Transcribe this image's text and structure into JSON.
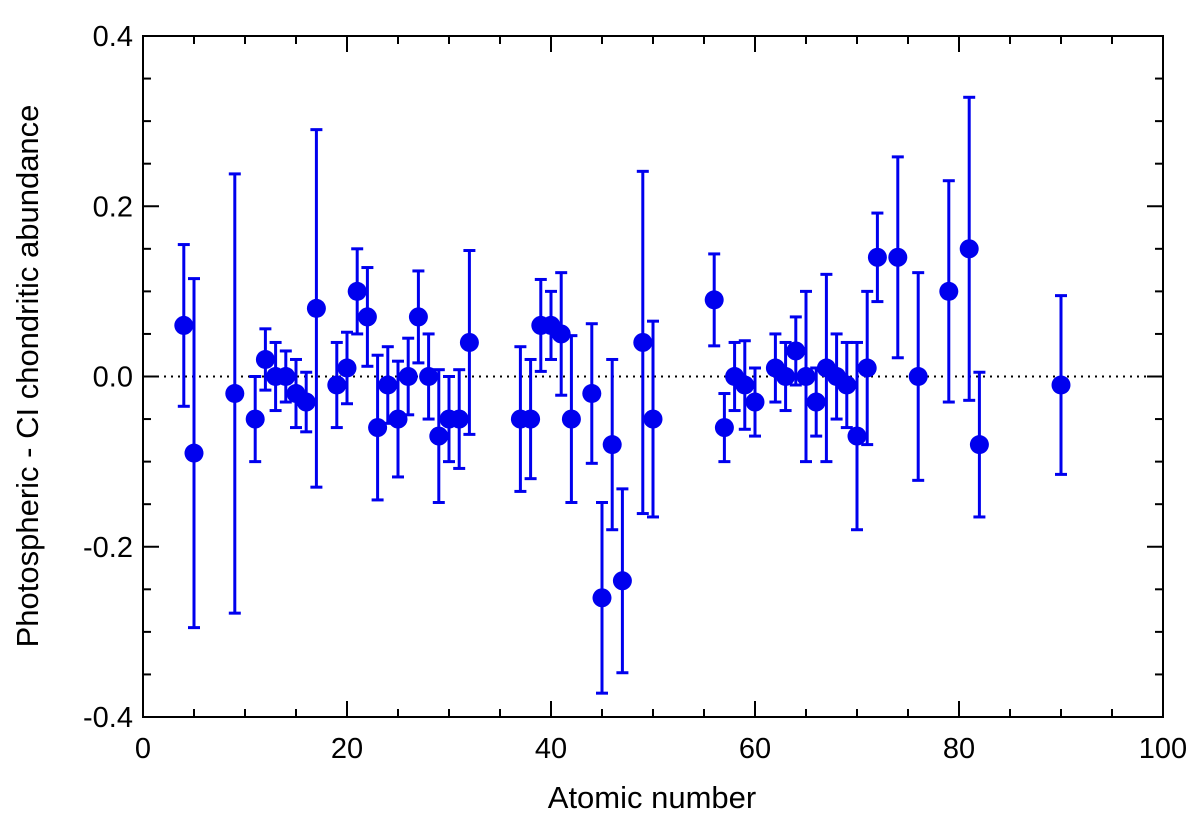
{
  "chart_data": {
    "type": "scatter",
    "title": "",
    "xlabel": "Atomic number",
    "ylabel": "Photospheric - CI chondritic abundance",
    "xlim": [
      0,
      100
    ],
    "ylim": [
      -0.4,
      0.4
    ],
    "xticks": [
      0,
      20,
      40,
      60,
      80,
      100
    ],
    "xtick_labels": [
      "0",
      "20",
      "40",
      "60",
      "80",
      "100"
    ],
    "yticks": [
      -0.4,
      -0.2,
      0.0,
      0.2,
      0.4
    ],
    "ytick_labels": [
      "-0.4",
      "-0.2",
      "0.0",
      "0.2",
      "0.4"
    ],
    "reference_line": {
      "y": 0.0,
      "style": "dotted"
    },
    "grid": false,
    "legend": "none",
    "marker_color": "#0000ee",
    "points": [
      {
        "x": 4,
        "y": 0.06,
        "err": 0.095
      },
      {
        "x": 5,
        "y": -0.09,
        "err": 0.205
      },
      {
        "x": 9,
        "y": -0.02,
        "err": 0.258
      },
      {
        "x": 11,
        "y": -0.05,
        "err": 0.05
      },
      {
        "x": 12,
        "y": 0.02,
        "err": 0.036
      },
      {
        "x": 13,
        "y": 0.0,
        "err": 0.04
      },
      {
        "x": 14,
        "y": 0.0,
        "err": 0.03
      },
      {
        "x": 15,
        "y": -0.02,
        "err": 0.04
      },
      {
        "x": 16,
        "y": -0.03,
        "err": 0.035
      },
      {
        "x": 17,
        "y": 0.08,
        "err": 0.21
      },
      {
        "x": 19,
        "y": -0.01,
        "err": 0.05
      },
      {
        "x": 20,
        "y": 0.01,
        "err": 0.042
      },
      {
        "x": 21,
        "y": 0.1,
        "err": 0.05
      },
      {
        "x": 22,
        "y": 0.07,
        "err": 0.058
      },
      {
        "x": 23,
        "y": -0.06,
        "err": 0.085
      },
      {
        "x": 24,
        "y": -0.01,
        "err": 0.045
      },
      {
        "x": 25,
        "y": -0.05,
        "err": 0.068
      },
      {
        "x": 26,
        "y": 0.0,
        "err": 0.045
      },
      {
        "x": 27,
        "y": 0.07,
        "err": 0.054
      },
      {
        "x": 28,
        "y": 0.0,
        "err": 0.05
      },
      {
        "x": 29,
        "y": -0.07,
        "err": 0.078
      },
      {
        "x": 30,
        "y": -0.05,
        "err": 0.05
      },
      {
        "x": 31,
        "y": -0.05,
        "err": 0.058
      },
      {
        "x": 32,
        "y": 0.04,
        "err": 0.108
      },
      {
        "x": 37,
        "y": -0.05,
        "err": 0.085
      },
      {
        "x": 38,
        "y": -0.05,
        "err": 0.07
      },
      {
        "x": 39,
        "y": 0.06,
        "err": 0.054
      },
      {
        "x": 40,
        "y": 0.06,
        "err": 0.04
      },
      {
        "x": 41,
        "y": 0.05,
        "err": 0.072
      },
      {
        "x": 42,
        "y": -0.05,
        "err": 0.098
      },
      {
        "x": 44,
        "y": -0.02,
        "err": 0.082
      },
      {
        "x": 45,
        "y": -0.26,
        "err": 0.112
      },
      {
        "x": 46,
        "y": -0.08,
        "err": 0.1
      },
      {
        "x": 47,
        "y": -0.24,
        "err": 0.108
      },
      {
        "x": 49,
        "y": 0.04,
        "err": 0.201
      },
      {
        "x": 50,
        "y": -0.05,
        "err": 0.115
      },
      {
        "x": 56,
        "y": 0.09,
        "err": 0.054
      },
      {
        "x": 57,
        "y": -0.06,
        "err": 0.04
      },
      {
        "x": 58,
        "y": 0.0,
        "err": 0.04
      },
      {
        "x": 59,
        "y": -0.01,
        "err": 0.052
      },
      {
        "x": 60,
        "y": -0.03,
        "err": 0.04
      },
      {
        "x": 62,
        "y": 0.01,
        "err": 0.04
      },
      {
        "x": 63,
        "y": 0.0,
        "err": 0.04
      },
      {
        "x": 64,
        "y": 0.03,
        "err": 0.04
      },
      {
        "x": 65,
        "y": 0.0,
        "err": 0.1
      },
      {
        "x": 66,
        "y": -0.03,
        "err": 0.04
      },
      {
        "x": 67,
        "y": 0.01,
        "err": 0.11
      },
      {
        "x": 68,
        "y": 0.0,
        "err": 0.05
      },
      {
        "x": 69,
        "y": -0.01,
        "err": 0.05
      },
      {
        "x": 70,
        "y": -0.07,
        "err": 0.11
      },
      {
        "x": 71,
        "y": 0.01,
        "err": 0.09
      },
      {
        "x": 72,
        "y": 0.14,
        "err": 0.052
      },
      {
        "x": 74,
        "y": 0.14,
        "err": 0.118
      },
      {
        "x": 76,
        "y": 0.0,
        "err": 0.122
      },
      {
        "x": 79,
        "y": 0.1,
        "err": 0.13
      },
      {
        "x": 81,
        "y": 0.15,
        "err": 0.178
      },
      {
        "x": 82,
        "y": -0.08,
        "err": 0.085
      },
      {
        "x": 90,
        "y": -0.01,
        "err": 0.105
      }
    ]
  }
}
